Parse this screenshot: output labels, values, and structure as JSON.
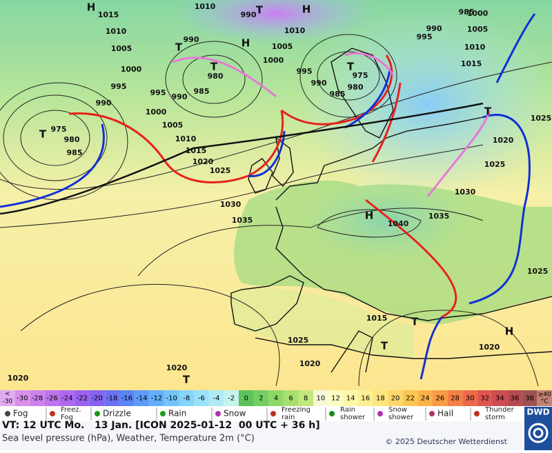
{
  "map": {
    "pressure_labels": [
      "1015",
      "1010",
      "990",
      "985",
      "1000",
      "1010",
      "990",
      "1010",
      "995",
      "990",
      "1005",
      "1005",
      "1005",
      "1010",
      "1000",
      "1000",
      "995",
      "1015",
      "980",
      "975",
      "995",
      "995",
      "985",
      "990",
      "990",
      "985",
      "980",
      "990",
      "1000",
      "975",
      "980",
      "1005",
      "1025",
      "985",
      "1010",
      "1020",
      "1015",
      "1020",
      "1025",
      "1025",
      "1030",
      "1030",
      "1035",
      "1040",
      "1035",
      "1025",
      "1015",
      "1025",
      "1020",
      "1020",
      "1020",
      "1020"
    ],
    "centers": [
      "H",
      "T",
      "H",
      "H",
      "T",
      "T",
      "T",
      "T",
      "H",
      "T",
      "T",
      "T",
      "H",
      "T"
    ]
  },
  "scale": {
    "below": {
      "symbol": "<",
      "value": "-30",
      "color": "#e2aaf0"
    },
    "cells": [
      {
        "label": "-30",
        "color": "#d890e8"
      },
      {
        "label": "-28",
        "color": "#cc82ea"
      },
      {
        "label": "-26",
        "color": "#be74ec"
      },
      {
        "label": "-24",
        "color": "#ac68ee"
      },
      {
        "label": "-22",
        "color": "#9a62ef"
      },
      {
        "label": "-20",
        "color": "#8464f0"
      },
      {
        "label": "-18",
        "color": "#6c72f3"
      },
      {
        "label": "-16",
        "color": "#5c84f5"
      },
      {
        "label": "-14",
        "color": "#5c9cf7"
      },
      {
        "label": "-12",
        "color": "#62b0f9"
      },
      {
        "label": "-10",
        "color": "#72c4fa"
      },
      {
        "label": "-8",
        "color": "#86d4fa"
      },
      {
        "label": "-6",
        "color": "#9ae0f8"
      },
      {
        "label": "-4",
        "color": "#b0eaf4"
      },
      {
        "label": "-2",
        "color": "#c6f2ee"
      },
      {
        "label": "0",
        "color": "#5cc25c"
      },
      {
        "label": "2",
        "color": "#74ce62"
      },
      {
        "label": "4",
        "color": "#8ed866"
      },
      {
        "label": "6",
        "color": "#a8e06e"
      },
      {
        "label": "8",
        "color": "#c2e87a"
      },
      {
        "label": "10",
        "color": "#f6f8d8"
      },
      {
        "label": "12",
        "color": "#fdfcc2"
      },
      {
        "label": "14",
        "color": "#fdf7aa"
      },
      {
        "label": "16",
        "color": "#fdf092"
      },
      {
        "label": "18",
        "color": "#fde67c"
      },
      {
        "label": "20",
        "color": "#fdd868"
      },
      {
        "label": "22",
        "color": "#fcc655"
      },
      {
        "label": "24",
        "color": "#fbb24a"
      },
      {
        "label": "26",
        "color": "#f89a46"
      },
      {
        "label": "28",
        "color": "#f48046"
      },
      {
        "label": "30",
        "color": "#ec6848"
      },
      {
        "label": "32",
        "color": "#e0544e"
      },
      {
        "label": "34",
        "color": "#cc4c52"
      },
      {
        "label": "36",
        "color": "#b64a52"
      },
      {
        "label": "38",
        "color": "#a05252"
      }
    ],
    "above": {
      "symbol": "≥40",
      "unit": "°C",
      "color": "#c08272"
    }
  },
  "legend": [
    [
      "Fog"
    ],
    [
      "Freez.",
      "Fog"
    ],
    [
      "Drizzle"
    ],
    [
      "Rain"
    ],
    [
      "Snow"
    ],
    [
      "Freezing",
      "rain"
    ],
    [
      "Rain",
      "shower"
    ],
    [
      "Snow",
      "shower"
    ],
    [
      "Hail"
    ],
    [
      "Thunder",
      "storm"
    ]
  ],
  "footer": {
    "valid": "VT: 12 UTC Mo.   13 Jan. [ICON 2025-01-12  00 UTC + 36 h]",
    "product": "Sea level pressure (hPa), Weather, Temperature 2m (°C)",
    "copyright": "© 2025 Deutscher Wetterdienst",
    "logo": "DWD"
  }
}
